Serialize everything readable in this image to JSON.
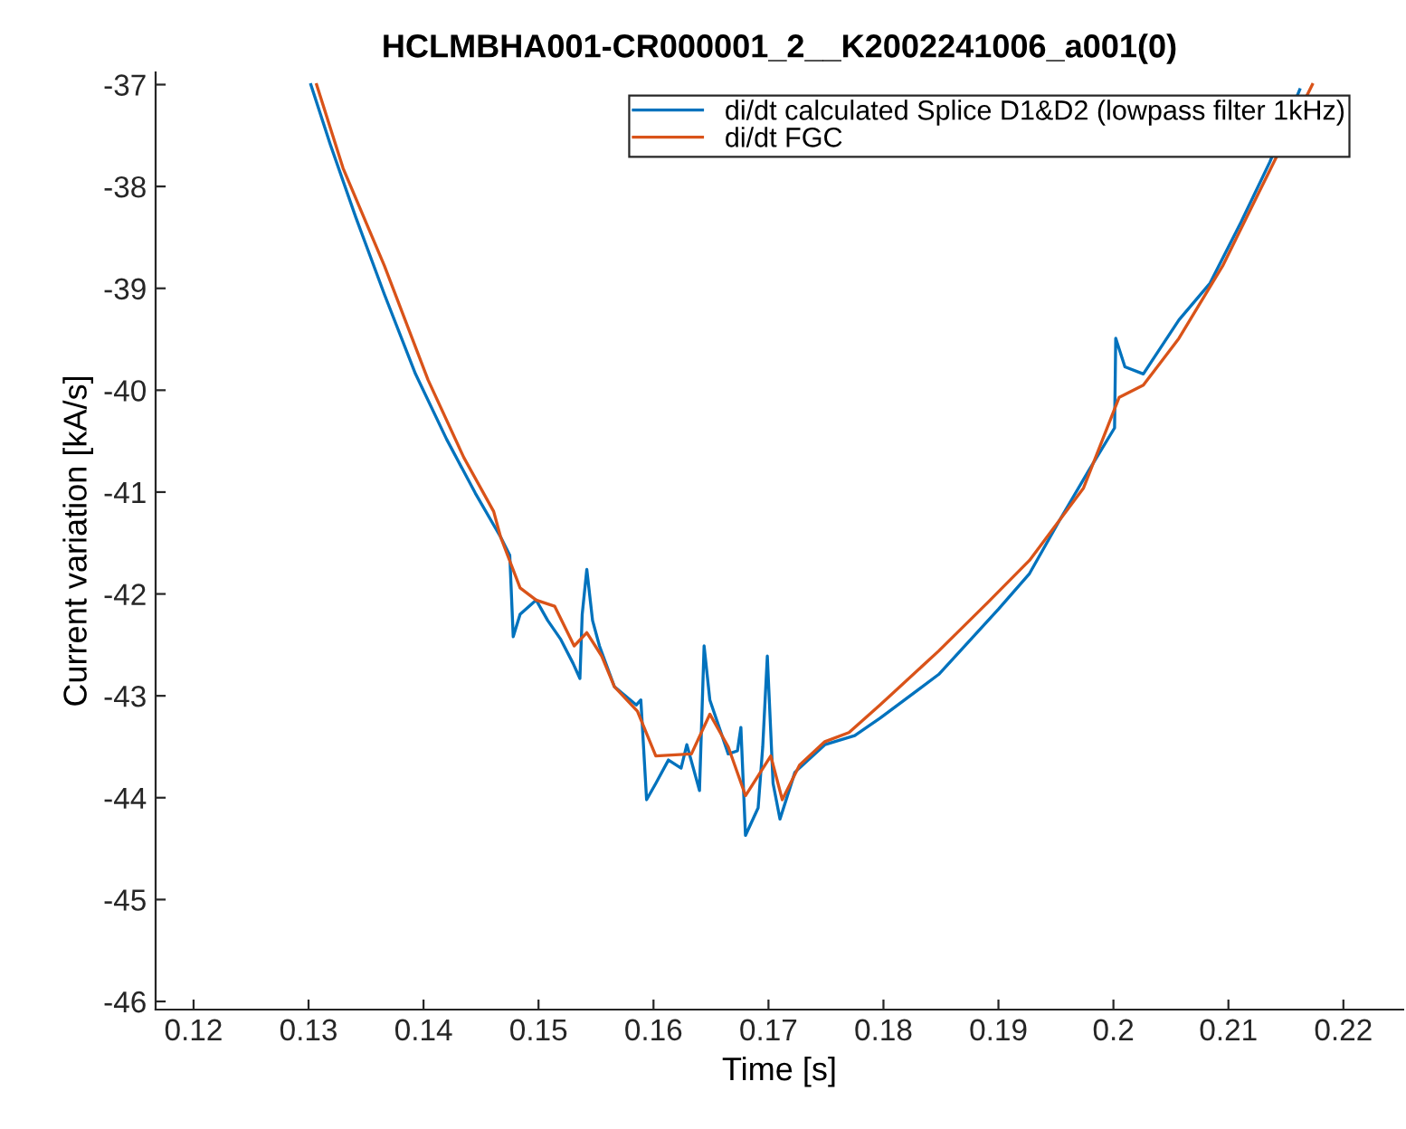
{
  "chart_data": {
    "type": "line",
    "title": "HCLMBHA001-CR000001_2__K2002241006_a001(0)",
    "xlabel": "Time [s]",
    "ylabel": "Current variation [kA/s]",
    "xlim": [
      0.1167,
      0.2252
    ],
    "ylim": [
      -46.08,
      -36.88
    ],
    "xticks": [
      0.12,
      0.13,
      0.14,
      0.15,
      0.16,
      0.17,
      0.18,
      0.19,
      0.2,
      0.21,
      0.22
    ],
    "yticks": [
      -46,
      -45,
      -44,
      -43,
      -42,
      -41,
      -40,
      -39,
      -38,
      -37
    ],
    "grid": false,
    "legend": "top right",
    "line_style": "solid",
    "series": [
      {
        "name": "di/dt calculated Splice D1&D2 (lowpass filter 1kHz)",
        "color": "#0072bd",
        "x": [
          0.1302,
          0.1319,
          0.1341,
          0.1366,
          0.1393,
          0.142,
          0.1445,
          0.1467,
          0.1475,
          0.1478,
          0.1484,
          0.1498,
          0.1508,
          0.1519,
          0.153,
          0.1536,
          0.1538,
          0.1542,
          0.1547,
          0.1553,
          0.1566,
          0.1585,
          0.1589,
          0.1594,
          0.1602,
          0.1613,
          0.1624,
          0.1629,
          0.164,
          0.1644,
          0.1649,
          0.1665,
          0.1673,
          0.1676,
          0.168,
          0.1691,
          0.1695,
          0.1699,
          0.1704,
          0.171,
          0.1723,
          0.1749,
          0.1775,
          0.1797,
          0.1848,
          0.19,
          0.1927,
          0.1954,
          0.1979,
          0.2001,
          0.2002,
          0.201,
          0.2026,
          0.2057,
          0.2084,
          0.2111,
          0.2136,
          0.2162
        ],
        "values": [
          -37.0,
          -37.59,
          -38.3,
          -39.06,
          -39.84,
          -40.48,
          -41.01,
          -41.44,
          -41.62,
          -42.42,
          -42.2,
          -42.06,
          -42.26,
          -42.44,
          -42.68,
          -42.83,
          -42.2,
          -41.76,
          -42.26,
          -42.51,
          -42.91,
          -43.09,
          -43.04,
          -44.02,
          -43.86,
          -43.63,
          -43.71,
          -43.48,
          -43.93,
          -42.51,
          -43.04,
          -43.57,
          -43.54,
          -43.31,
          -44.37,
          -44.1,
          -43.5,
          -42.61,
          -43.86,
          -44.21,
          -43.75,
          -43.48,
          -43.39,
          -43.22,
          -42.79,
          -42.15,
          -41.8,
          -41.26,
          -40.78,
          -40.37,
          -39.49,
          -39.77,
          -39.84,
          -39.31,
          -38.95,
          -38.35,
          -37.76,
          -37.05
        ]
      },
      {
        "name": "di/dt FGC",
        "color": "#d95319",
        "x": [
          0.1307,
          0.133,
          0.1366,
          0.1404,
          0.1435,
          0.1461,
          0.1467,
          0.1484,
          0.1498,
          0.1514,
          0.1531,
          0.1542,
          0.1555,
          0.1566,
          0.1586,
          0.1602,
          0.1633,
          0.1649,
          0.1665,
          0.168,
          0.1702,
          0.1712,
          0.1727,
          0.1749,
          0.177,
          0.1797,
          0.1848,
          0.1891,
          0.1927,
          0.1974,
          0.2005,
          0.2026,
          0.2057,
          0.2095,
          0.2126,
          0.2173
        ],
        "values": [
          -37.0,
          -37.82,
          -38.78,
          -39.9,
          -40.66,
          -41.19,
          -41.44,
          -41.94,
          -42.06,
          -42.12,
          -42.51,
          -42.38,
          -42.61,
          -42.91,
          -43.15,
          -43.59,
          -43.57,
          -43.18,
          -43.5,
          -43.98,
          -43.59,
          -44.02,
          -43.68,
          -43.45,
          -43.36,
          -43.09,
          -42.56,
          -42.08,
          -41.67,
          -40.96,
          -40.07,
          -39.95,
          -39.49,
          -38.78,
          -38.07,
          -37.0
        ]
      }
    ]
  }
}
